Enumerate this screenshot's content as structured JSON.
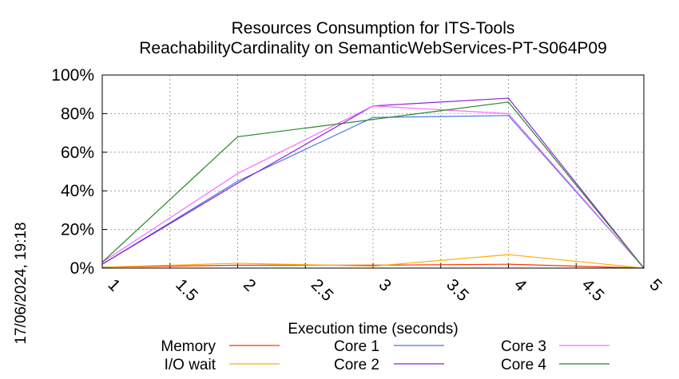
{
  "chart_data": {
    "type": "line",
    "title_line1": "Resources Consumption for ITS-Tools",
    "title_line2": "ReachabilityCardinality on SemanticWebServices-PT-S064P09",
    "xlabel": "Execution time (seconds)",
    "ylabel": "",
    "timestamp": "17/06/2024, 19:18",
    "xlim": [
      1,
      5
    ],
    "ylim": [
      0,
      100
    ],
    "x_ticks": [
      "1",
      "1.5",
      "2",
      "2.5",
      "3",
      "3.5",
      "4",
      "4.5",
      "5"
    ],
    "y_ticks": [
      "0%",
      "20%",
      "40%",
      "60%",
      "80%",
      "100%"
    ],
    "grid": true,
    "legend_placement": "bottom",
    "series": [
      {
        "name": "Memory",
        "color": "#ff3300",
        "x": [
          1,
          2,
          3,
          4,
          5
        ],
        "values": [
          0.5,
          1.5,
          1.5,
          2,
          0
        ]
      },
      {
        "name": "I/O wait",
        "color": "#ffaa00",
        "x": [
          1,
          2,
          3,
          4,
          5
        ],
        "values": [
          0.5,
          2.5,
          1,
          7,
          0
        ]
      },
      {
        "name": "Core 1",
        "color": "#4477dd",
        "x": [
          1,
          2,
          3,
          4,
          5
        ],
        "values": [
          2,
          45,
          78,
          79,
          0
        ]
      },
      {
        "name": "Core 2",
        "color": "#8822dd",
        "x": [
          1,
          2,
          3,
          4,
          5
        ],
        "values": [
          2,
          44,
          84,
          88,
          0
        ]
      },
      {
        "name": "Core 3",
        "color": "#ff66ff",
        "x": [
          1,
          2,
          3,
          4,
          5
        ],
        "values": [
          3,
          49,
          84,
          80,
          0
        ]
      },
      {
        "name": "Core 4",
        "color": "#228822",
        "x": [
          1,
          2,
          3,
          4,
          5
        ],
        "values": [
          3,
          68,
          77,
          86,
          0
        ]
      }
    ]
  }
}
